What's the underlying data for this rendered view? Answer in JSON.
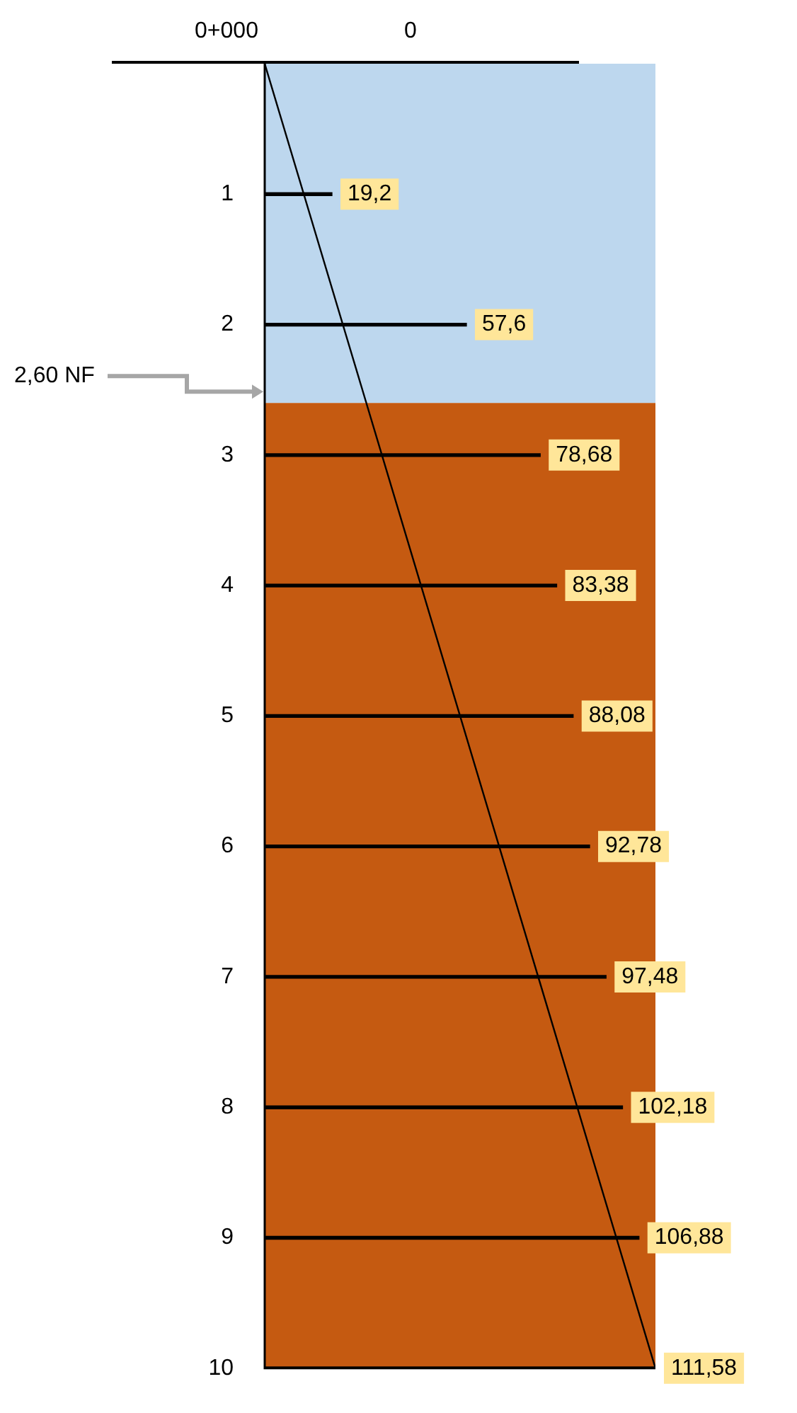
{
  "chart_data": {
    "type": "bar",
    "orientation": "horizontal",
    "x": [
      1,
      2,
      3,
      4,
      5,
      6,
      7,
      8,
      9,
      10
    ],
    "ylim": [
      10,
      0
    ],
    "yticks": [
      1,
      2,
      3,
      4,
      5,
      6,
      7,
      8,
      9,
      10
    ],
    "legend": false,
    "series": [
      {
        "color": "#000000",
        "values": [
          19.2,
          57.6,
          78.68,
          83.38,
          88.08,
          92.78,
          97.48,
          102.18,
          106.88,
          111.58
        ],
        "value_labels": [
          "19,2",
          "57,6",
          "78,68",
          "83,38",
          "88,08",
          "92,78",
          "97,48",
          "102,18",
          "106,88",
          "111,58"
        ]
      },
      {
        "type": "line",
        "color": "#000000",
        "x": [
          0,
          10
        ],
        "values": [
          0,
          111.58
        ]
      }
    ],
    "bands": [
      {
        "axis": "y",
        "from": 0,
        "to": 2.6,
        "color": "#bdd7ee"
      },
      {
        "axis": "y",
        "from": 2.6,
        "to": 10,
        "color": "#c55a11"
      }
    ],
    "annotations": [
      "0+000",
      "0",
      "2,60 NF"
    ]
  }
}
